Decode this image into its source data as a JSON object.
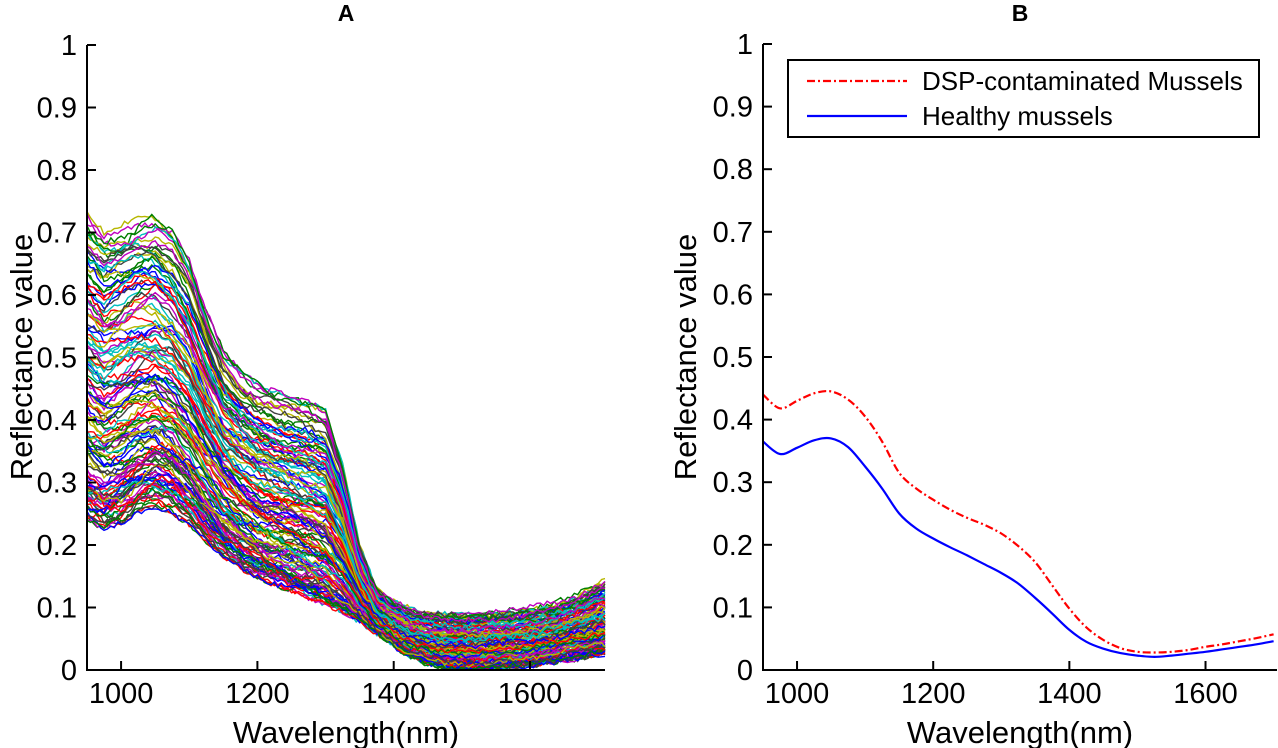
{
  "figure": {
    "background": "#ffffff",
    "axis_color": "#000000"
  },
  "chart_data": [
    {
      "type": "line",
      "panel": "A",
      "title": "A",
      "xlabel": "Wavelength(nm)",
      "ylabel": "Reflectance value",
      "xlim": [
        950,
        1710
      ],
      "ylim": [
        0,
        1
      ],
      "xticks": [
        "1000",
        "1200",
        "1400",
        "1600"
      ],
      "yticks": [
        "0",
        "0.1",
        "0.2",
        "0.3",
        "0.4",
        "0.5",
        "0.6",
        "0.7",
        "0.8",
        "0.9",
        "1"
      ],
      "grid": false,
      "description": "Ensemble of individual mussel reflectance spectra",
      "ensemble": {
        "n_curves": 140,
        "x": [
          950,
          975,
          1000,
          1025,
          1050,
          1075,
          1100,
          1125,
          1150,
          1175,
          1200,
          1225,
          1250,
          1275,
          1300,
          1325,
          1350,
          1375,
          1400,
          1425,
          1450,
          1475,
          1500,
          1525,
          1550,
          1575,
          1600,
          1625,
          1650,
          1675,
          1700,
          1710
        ],
        "low": [
          0.24,
          0.225,
          0.235,
          0.252,
          0.262,
          0.252,
          0.232,
          0.206,
          0.182,
          0.163,
          0.148,
          0.136,
          0.126,
          0.116,
          0.106,
          0.093,
          0.078,
          0.058,
          0.038,
          0.02,
          0.009,
          0.003,
          0.001,
          0.001,
          0.002,
          0.004,
          0.007,
          0.011,
          0.015,
          0.019,
          0.024,
          0.026
        ],
        "high": [
          0.73,
          0.7,
          0.712,
          0.728,
          0.73,
          0.705,
          0.655,
          0.575,
          0.51,
          0.478,
          0.458,
          0.446,
          0.437,
          0.428,
          0.415,
          0.33,
          0.2,
          0.13,
          0.11,
          0.098,
          0.092,
          0.092,
          0.093,
          0.093,
          0.094,
          0.096,
          0.1,
          0.106,
          0.113,
          0.124,
          0.14,
          0.143
        ],
        "colors": [
          "#0000ff",
          "#007f00",
          "#ff0000",
          "#00bfbf",
          "#bf00bf",
          "#b7b700",
          "#3f3f3f"
        ]
      }
    },
    {
      "type": "line",
      "panel": "B",
      "title": "B",
      "xlabel": "Wavelength(nm)",
      "ylabel": "Reflectance value",
      "xlim": [
        950,
        1705
      ],
      "ylim": [
        0,
        1
      ],
      "xticks": [
        "1000",
        "1200",
        "1400",
        "1600"
      ],
      "yticks": [
        "0",
        "0.1",
        "0.2",
        "0.3",
        "0.4",
        "0.5",
        "0.6",
        "0.7",
        "0.8",
        "0.9",
        "1"
      ],
      "grid": false,
      "legend_position": "top-right",
      "x": [
        950,
        975,
        1000,
        1025,
        1050,
        1075,
        1100,
        1125,
        1150,
        1175,
        1200,
        1225,
        1250,
        1275,
        1300,
        1325,
        1350,
        1375,
        1400,
        1425,
        1450,
        1475,
        1500,
        1525,
        1550,
        1575,
        1600,
        1625,
        1650,
        1675,
        1700
      ],
      "series": [
        {
          "name": "DSP-contaminated Mussels",
          "color": "#ff0000",
          "style": "dash-dot",
          "values": [
            0.44,
            0.418,
            0.43,
            0.442,
            0.445,
            0.432,
            0.405,
            0.365,
            0.315,
            0.29,
            0.272,
            0.256,
            0.243,
            0.232,
            0.218,
            0.198,
            0.172,
            0.135,
            0.098,
            0.068,
            0.048,
            0.035,
            0.029,
            0.028,
            0.029,
            0.032,
            0.037,
            0.041,
            0.046,
            0.051,
            0.057
          ]
        },
        {
          "name": "Healthy mussels",
          "color": "#0000ff",
          "style": "solid",
          "values": [
            0.365,
            0.345,
            0.355,
            0.367,
            0.37,
            0.356,
            0.325,
            0.29,
            0.25,
            0.226,
            0.21,
            0.196,
            0.183,
            0.169,
            0.155,
            0.138,
            0.115,
            0.09,
            0.064,
            0.045,
            0.034,
            0.027,
            0.023,
            0.021,
            0.023,
            0.026,
            0.029,
            0.033,
            0.037,
            0.041,
            0.046
          ]
        }
      ]
    }
  ]
}
